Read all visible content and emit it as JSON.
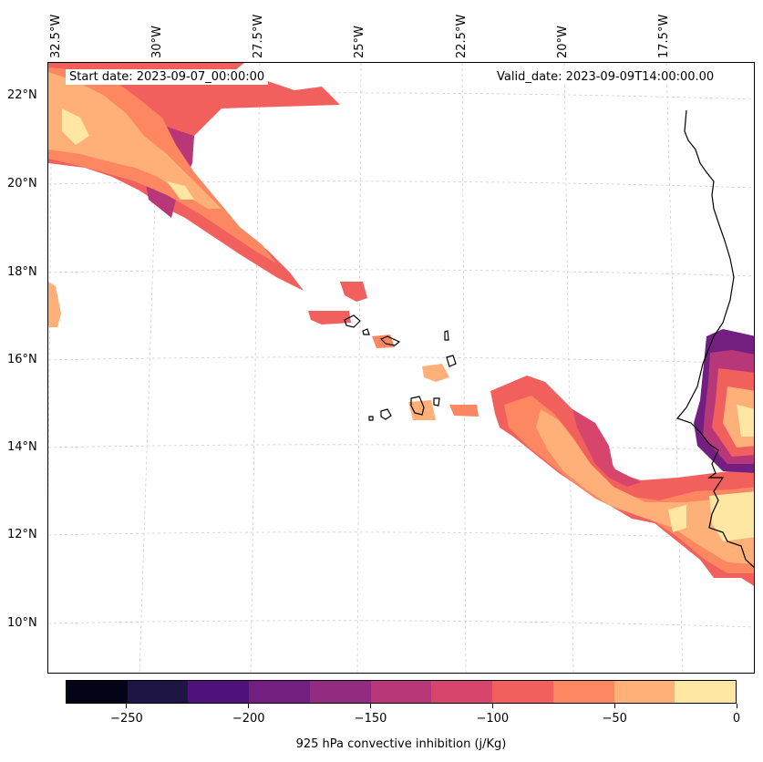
{
  "map": {
    "start_date": "Start date: 2023-09-07_00:00:00",
    "valid_date": "Valid_date: 2023-09-09T14:00:00.00",
    "lon_labels": [
      "32.5°W",
      "30°W",
      "27.5°W",
      "25°W",
      "22.5°W",
      "20°W",
      "17.5°W"
    ],
    "lat_labels": [
      "22°N",
      "20°N",
      "18°N",
      "16°N",
      "14°N",
      "12°N",
      "10°N"
    ],
    "field": "925 hPa convective inhibition",
    "coastline_color": "#000000",
    "gridline_color": "#cccccc"
  },
  "colorbar": {
    "label": "925 hPa convective inhibition (j/Kg)",
    "tick_labels": [
      "−250",
      "−200",
      "−150",
      "−100",
      "−50",
      "0"
    ],
    "tick_values": [
      -250,
      -200,
      -150,
      -100,
      -50,
      0
    ],
    "range": [
      -275,
      0
    ],
    "levels": [
      -275,
      -250,
      -225,
      -200,
      -175,
      -150,
      -125,
      -100,
      -75,
      -50,
      -25,
      0
    ],
    "colors": [
      "#050417",
      "#1f1545",
      "#4f127b",
      "#721f81",
      "#932b80",
      "#b73779",
      "#d8456c",
      "#f1605d",
      "#fc8761",
      "#feb078",
      "#fde7a3"
    ]
  }
}
